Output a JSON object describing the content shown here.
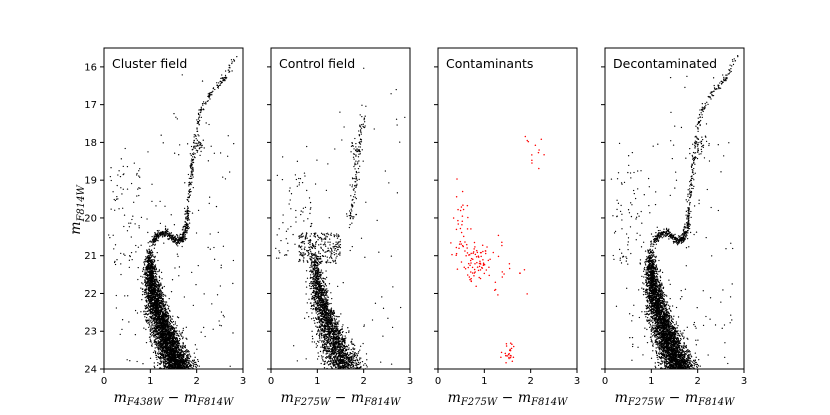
{
  "chart_data": {
    "type": "scatter",
    "ylabel": {
      "base": "m",
      "sub": "F814W"
    },
    "ylim": [
      24,
      15.5
    ],
    "xlim": [
      0,
      3
    ],
    "xticks": [
      0,
      1,
      2,
      3
    ],
    "yticks": [
      16,
      17,
      18,
      19,
      20,
      21,
      22,
      23,
      24
    ],
    "panels": [
      {
        "title": "Cluster field",
        "xlabel": {
          "m1_sub": "F438W",
          "m2_sub": "F814W"
        },
        "color": "#000000",
        "population": "cluster_plus_field"
      },
      {
        "title": "Control field",
        "xlabel": {
          "m1_sub": "F275W",
          "m2_sub": "F814W"
        },
        "color": "#000000",
        "population": "control"
      },
      {
        "title": "Contaminants",
        "xlabel": {
          "m1_sub": "F275W",
          "m2_sub": "F814W"
        },
        "color": "#ff0000",
        "population": "contaminants"
      },
      {
        "title": "Decontaminated",
        "xlabel": {
          "m1_sub": "F275W",
          "m2_sub": "F814W"
        },
        "color": "#000000",
        "population": "decontaminated"
      }
    ],
    "sequences": {
      "main_sequence": [
        [
          1.02,
          20.7
        ],
        [
          0.98,
          21.0
        ],
        [
          1.0,
          21.5
        ],
        [
          1.07,
          22.0
        ],
        [
          1.17,
          22.5
        ],
        [
          1.3,
          23.0
        ],
        [
          1.45,
          23.5
        ],
        [
          1.62,
          24.0
        ]
      ],
      "subgiant_branch": [
        [
          1.02,
          20.7
        ],
        [
          1.15,
          20.45
        ],
        [
          1.35,
          20.4
        ],
        [
          1.55,
          20.6
        ],
        [
          1.7,
          20.55
        ],
        [
          1.78,
          20.2
        ]
      ],
      "red_giant_branch": [
        [
          1.78,
          20.2
        ],
        [
          1.82,
          19.6
        ],
        [
          1.87,
          19.0
        ],
        [
          1.92,
          18.4
        ],
        [
          1.98,
          17.8
        ],
        [
          2.08,
          17.2
        ],
        [
          2.25,
          16.8
        ],
        [
          2.45,
          16.5
        ],
        [
          2.65,
          16.2
        ],
        [
          2.85,
          15.7
        ]
      ],
      "red_clump": {
        "x": 2.05,
        "y": 18.1,
        "n": 30
      },
      "blue_stragglers": {
        "xrange": [
          0.1,
          0.8
        ],
        "yrange": [
          18.6,
          21.3
        ],
        "n": 60
      }
    },
    "contaminants": {
      "clumps": [
        {
          "x": 0.85,
          "y": 21.2,
          "n": 70,
          "sx": 0.12,
          "sy": 0.25
        },
        {
          "x": 0.5,
          "y": 20.4,
          "n": 40,
          "sx": 0.12,
          "sy": 0.6
        },
        {
          "x": 1.5,
          "y": 23.6,
          "n": 25,
          "sx": 0.06,
          "sy": 0.15
        },
        {
          "x": 2.05,
          "y": 18.3,
          "n": 12,
          "sx": 0.1,
          "sy": 0.5
        },
        {
          "x": 1.4,
          "y": 21.3,
          "n": 20,
          "sx": 0.25,
          "sy": 0.4
        }
      ]
    }
  }
}
